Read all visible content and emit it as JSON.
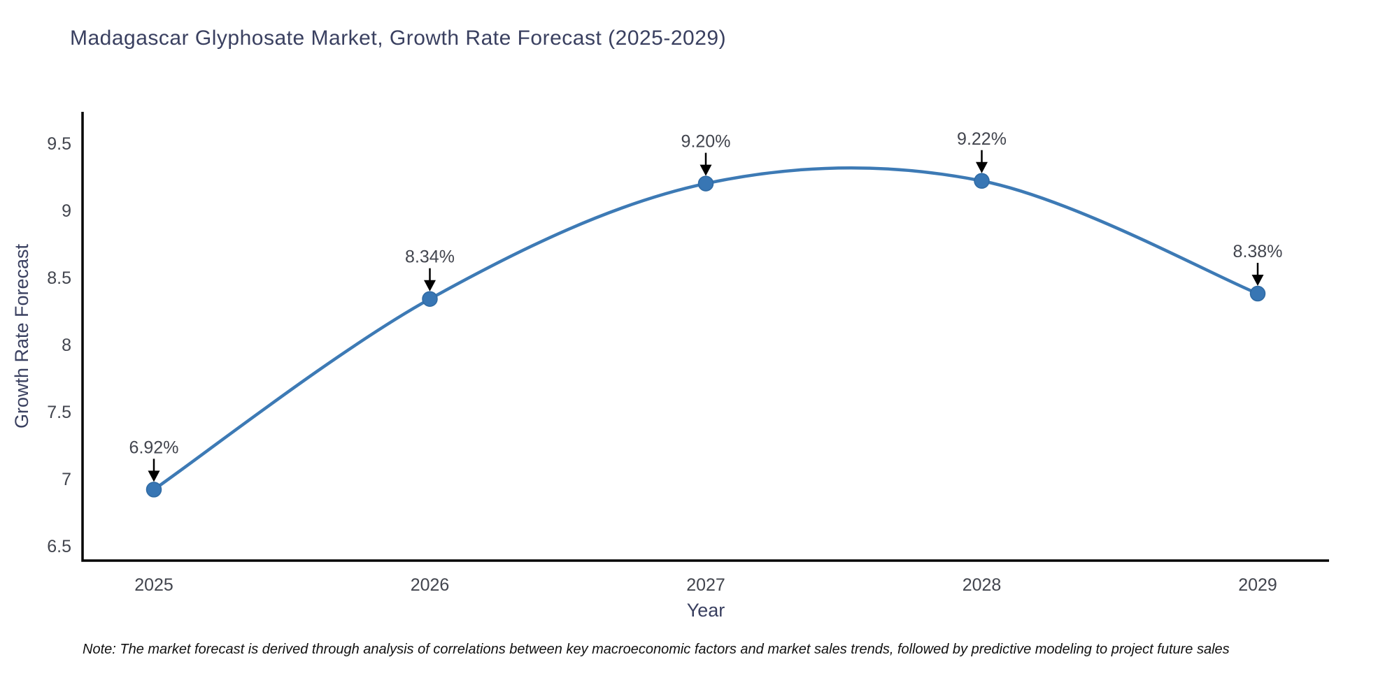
{
  "title": "Madagascar Glyphosate Market, Growth Rate Forecast (2025-2029)",
  "note": "Note: The market forecast is derived through analysis of correlations between key macroeconomic factors and market sales trends, followed by predictive modeling to project future sales",
  "chart_data": {
    "type": "line",
    "title": "Madagascar Glyphosate Market, Growth Rate Forecast (2025-2029)",
    "xlabel": "Year",
    "ylabel": "Growth Rate Forecast",
    "x": [
      2025,
      2026,
      2027,
      2028,
      2029
    ],
    "values": [
      6.92,
      8.34,
      9.2,
      9.22,
      8.38
    ],
    "point_labels": [
      "6.92%",
      "8.34%",
      "9.20%",
      "9.22%",
      "8.38%"
    ],
    "yticks": [
      6.5,
      7,
      7.5,
      8,
      8.5,
      9,
      9.5
    ],
    "ylim": [
      6.39,
      9.73
    ],
    "line_shape": "spline",
    "marker": "circle",
    "annotation_style": "label-above-with-down-arrow",
    "grid": false,
    "legend_position": "none",
    "colors": {
      "line": "#3d7ab5",
      "marker_fill": "#3876b4",
      "marker_edge": "#2f6aa3",
      "axis_line": "#000000",
      "tick_text": "#42454e",
      "annotation_text": "#42454e",
      "annotation_arrow": "#000000",
      "title_text": "#3a4060",
      "note_text": "#111111",
      "background": "#ffffff"
    }
  }
}
